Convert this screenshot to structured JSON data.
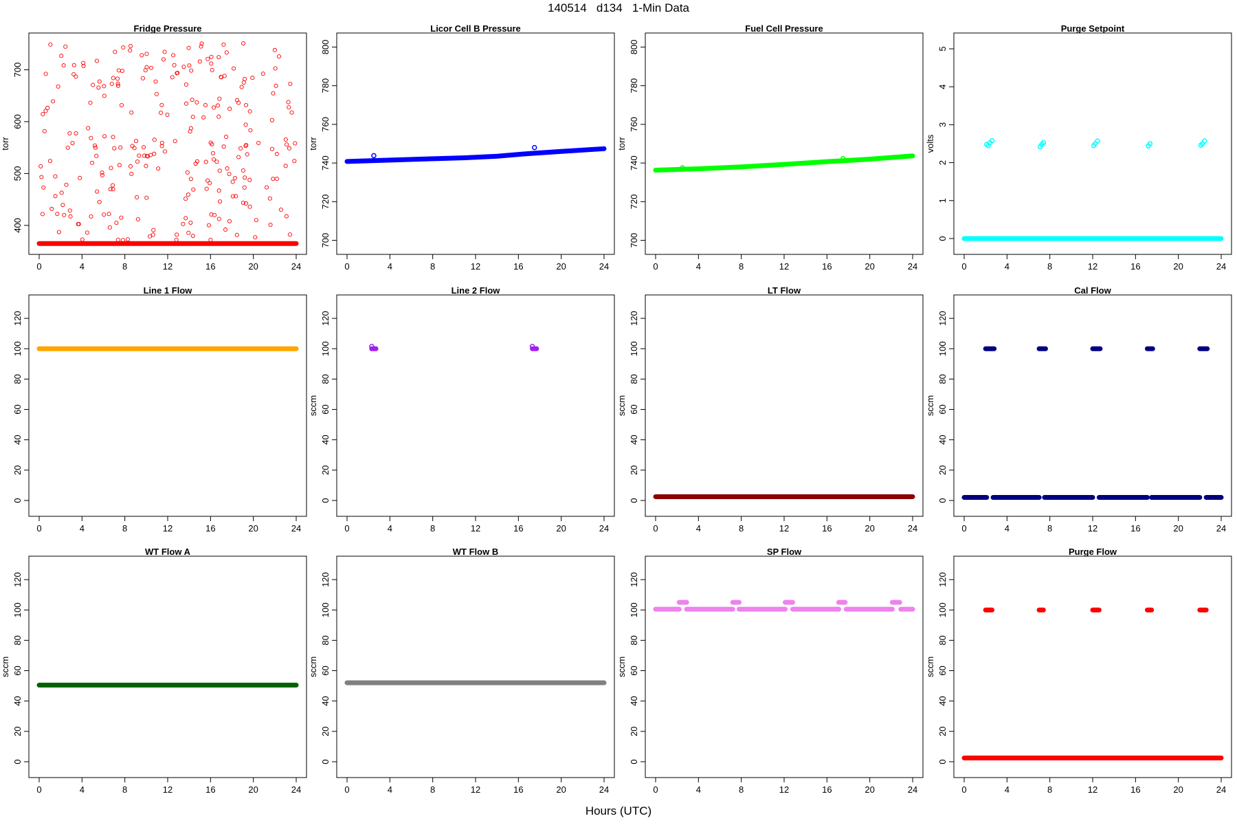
{
  "title": "140514   d134   1-Min Data",
  "xlabel": "Hours (UTC)",
  "colors": {
    "red": "#ff0000",
    "blue": "#0000ff",
    "green": "#00ff00",
    "cyan": "#00ffff",
    "orange": "#ffa500",
    "purple": "#a020f0",
    "darkred": "#8b0000",
    "navy": "#000080",
    "darkgreen": "#006400",
    "gray": "#808080",
    "violet": "#ee82ee"
  },
  "chart_data": [
    {
      "type": "scatter",
      "title": "Fridge Pressure",
      "ylabel": "torr",
      "xlim": [
        0,
        24
      ],
      "ylim": [
        360,
        755
      ],
      "xticks": [
        0,
        4,
        8,
        12,
        16,
        20,
        24
      ],
      "yticks": [
        400,
        500,
        600,
        700
      ],
      "color": "#ff0000",
      "series": [
        {
          "kind": "band",
          "x_from": 0,
          "x_to": 24,
          "y": 365
        },
        {
          "kind": "scatter_random",
          "x_from": 0,
          "x_to": 24,
          "y_from": 370,
          "y_to": 752,
          "count": 260
        }
      ]
    },
    {
      "type": "scatter",
      "title": "Licor Cell B Pressure",
      "ylabel": "torr",
      "xlim": [
        0,
        24
      ],
      "ylim": [
        697,
        803
      ],
      "xticks": [
        0,
        4,
        8,
        12,
        16,
        20,
        24
      ],
      "yticks": [
        700,
        720,
        740,
        760,
        780,
        800
      ],
      "color": "#0000ff",
      "series": [
        {
          "kind": "polyline",
          "x": [
            0,
            4,
            8,
            11,
            14,
            17,
            20,
            24
          ],
          "y": [
            740.8,
            741.5,
            742.2,
            742.7,
            743.5,
            744.9,
            746.0,
            747.4
          ]
        },
        {
          "kind": "points",
          "x": [
            2.5,
            17.5
          ],
          "y": [
            743.8,
            748.0
          ]
        }
      ]
    },
    {
      "type": "scatter",
      "title": "Fuel Cell Pressure",
      "ylabel": "torr",
      "xlim": [
        0,
        24
      ],
      "ylim": [
        697,
        803
      ],
      "xticks": [
        0,
        4,
        8,
        12,
        16,
        20,
        24
      ],
      "yticks": [
        700,
        720,
        740,
        760,
        780,
        800
      ],
      "color": "#00ff00",
      "series": [
        {
          "kind": "polyline",
          "x": [
            0,
            4,
            8,
            12,
            16,
            20,
            24
          ],
          "y": [
            736.3,
            737.0,
            738.0,
            739.3,
            740.7,
            742.0,
            743.7
          ]
        },
        {
          "kind": "points",
          "x": [
            2.5,
            17.5
          ],
          "y": [
            737.5,
            742.3
          ]
        }
      ]
    },
    {
      "type": "scatter",
      "title": "Purge Setpoint",
      "ylabel": "volts",
      "xlim": [
        0,
        24
      ],
      "ylim": [
        -0.2,
        5.2
      ],
      "xticks": [
        0,
        4,
        8,
        12,
        16,
        20,
        24
      ],
      "yticks": [
        0,
        1,
        2,
        3,
        4,
        5
      ],
      "color": "#00ffff",
      "series": [
        {
          "kind": "band",
          "x_from": 0,
          "x_to": 24,
          "y": 0
        },
        {
          "kind": "points",
          "x": [
            2.1,
            2.25,
            2.4,
            2.6,
            7.1,
            7.25,
            7.4,
            12.1,
            12.25,
            12.45,
            17.2,
            17.35,
            22.1,
            22.25,
            22.45
          ],
          "y": [
            2.48,
            2.45,
            2.52,
            2.58,
            2.42,
            2.48,
            2.53,
            2.45,
            2.5,
            2.57,
            2.44,
            2.5,
            2.46,
            2.5,
            2.57
          ]
        }
      ]
    },
    {
      "type": "scatter",
      "title": "Line 1 Flow",
      "ylabel": "",
      "xlim": [
        0,
        24
      ],
      "ylim": [
        -5,
        130
      ],
      "xticks": [
        0,
        4,
        8,
        12,
        16,
        20,
        24
      ],
      "yticks": [
        0,
        20,
        40,
        60,
        80,
        100,
        120
      ],
      "color": "#ffa500",
      "series": [
        {
          "kind": "band",
          "x_from": 0,
          "x_to": 24,
          "y": 100
        }
      ]
    },
    {
      "type": "scatter",
      "title": "Line 2 Flow",
      "ylabel": "sccm",
      "xlim": [
        0,
        24
      ],
      "ylim": [
        -5,
        130
      ],
      "xticks": [
        0,
        4,
        8,
        12,
        16,
        20,
        24
      ],
      "yticks": [
        0,
        20,
        40,
        60,
        80,
        100,
        120
      ],
      "color": "#a020f0",
      "series": [
        {
          "kind": "band",
          "x_from": 2.3,
          "x_to": 2.7,
          "y": 100
        },
        {
          "kind": "band",
          "x_from": 17.3,
          "x_to": 17.7,
          "y": 100
        },
        {
          "kind": "points",
          "x": [
            2.3,
            17.3
          ],
          "y": [
            101.5,
            101.5
          ]
        }
      ]
    },
    {
      "type": "scatter",
      "title": "LT Flow",
      "ylabel": "sccm",
      "xlim": [
        0,
        24
      ],
      "ylim": [
        -5,
        130
      ],
      "xticks": [
        0,
        4,
        8,
        12,
        16,
        20,
        24
      ],
      "yticks": [
        0,
        20,
        40,
        60,
        80,
        100,
        120
      ],
      "color": "#8b0000",
      "series": [
        {
          "kind": "band",
          "x_from": 0,
          "x_to": 24,
          "y": 2.5
        }
      ]
    },
    {
      "type": "scatter",
      "title": "Cal Flow",
      "ylabel": "sccm",
      "xlim": [
        0,
        24
      ],
      "ylim": [
        -5,
        130
      ],
      "xticks": [
        0,
        4,
        8,
        12,
        16,
        20,
        24
      ],
      "yticks": [
        0,
        20,
        40,
        60,
        80,
        100,
        120
      ],
      "color": "#000080",
      "series": [
        {
          "kind": "band",
          "x_from": 0,
          "x_to": 2.1,
          "y": 2
        },
        {
          "kind": "band",
          "x_from": 2.7,
          "x_to": 7.0,
          "y": 2
        },
        {
          "kind": "band",
          "x_from": 7.5,
          "x_to": 12.0,
          "y": 2
        },
        {
          "kind": "band",
          "x_from": 12.6,
          "x_to": 17.1,
          "y": 2
        },
        {
          "kind": "band",
          "x_from": 17.5,
          "x_to": 22.0,
          "y": 2
        },
        {
          "kind": "band",
          "x_from": 22.6,
          "x_to": 24,
          "y": 2
        },
        {
          "kind": "band",
          "x_from": 2.0,
          "x_to": 2.8,
          "y": 100
        },
        {
          "kind": "band",
          "x_from": 7.0,
          "x_to": 7.6,
          "y": 100
        },
        {
          "kind": "band",
          "x_from": 12.0,
          "x_to": 12.7,
          "y": 100
        },
        {
          "kind": "band",
          "x_from": 17.1,
          "x_to": 17.6,
          "y": 100
        },
        {
          "kind": "band",
          "x_from": 22.0,
          "x_to": 22.7,
          "y": 100
        }
      ]
    },
    {
      "type": "scatter",
      "title": "WT Flow A",
      "ylabel": "sccm",
      "xlim": [
        0,
        24
      ],
      "ylim": [
        -5,
        130
      ],
      "xticks": [
        0,
        4,
        8,
        12,
        16,
        20,
        24
      ],
      "yticks": [
        0,
        20,
        40,
        60,
        80,
        100,
        120
      ],
      "color": "#006400",
      "series": [
        {
          "kind": "band",
          "x_from": 0,
          "x_to": 24,
          "y": 50.5
        }
      ]
    },
    {
      "type": "scatter",
      "title": "WT Flow B",
      "ylabel": "sccm",
      "xlim": [
        0,
        24
      ],
      "ylim": [
        -5,
        130
      ],
      "xticks": [
        0,
        4,
        8,
        12,
        16,
        20,
        24
      ],
      "yticks": [
        0,
        20,
        40,
        60,
        80,
        100,
        120
      ],
      "color": "#808080",
      "series": [
        {
          "kind": "band",
          "x_from": 0,
          "x_to": 24,
          "y": 52
        }
      ]
    },
    {
      "type": "scatter",
      "title": "SP Flow",
      "ylabel": "sccm",
      "xlim": [
        0,
        24
      ],
      "ylim": [
        -5,
        130
      ],
      "xticks": [
        0,
        4,
        8,
        12,
        16,
        20,
        24
      ],
      "yticks": [
        0,
        20,
        40,
        60,
        80,
        100,
        120
      ],
      "color": "#ee82ee",
      "series": [
        {
          "kind": "band",
          "x_from": 0,
          "x_to": 2.2,
          "y": 100.5
        },
        {
          "kind": "band",
          "x_from": 2.9,
          "x_to": 7.2,
          "y": 100.5
        },
        {
          "kind": "band",
          "x_from": 7.8,
          "x_to": 12.1,
          "y": 100.5
        },
        {
          "kind": "band",
          "x_from": 12.8,
          "x_to": 17.1,
          "y": 100.5
        },
        {
          "kind": "band",
          "x_from": 17.8,
          "x_to": 22.1,
          "y": 100.5
        },
        {
          "kind": "band",
          "x_from": 22.9,
          "x_to": 24,
          "y": 100.5
        },
        {
          "kind": "band",
          "x_from": 2.2,
          "x_to": 2.9,
          "y": 105
        },
        {
          "kind": "band",
          "x_from": 7.2,
          "x_to": 7.8,
          "y": 105
        },
        {
          "kind": "band",
          "x_from": 12.1,
          "x_to": 12.8,
          "y": 105
        },
        {
          "kind": "band",
          "x_from": 17.1,
          "x_to": 17.7,
          "y": 105
        },
        {
          "kind": "band",
          "x_from": 22.1,
          "x_to": 22.8,
          "y": 105
        }
      ]
    },
    {
      "type": "scatter",
      "title": "Purge Flow",
      "ylabel": "sccm",
      "xlim": [
        0,
        24
      ],
      "ylim": [
        -5,
        130
      ],
      "xticks": [
        0,
        4,
        8,
        12,
        16,
        20,
        24
      ],
      "yticks": [
        0,
        20,
        40,
        60,
        80,
        100,
        120
      ],
      "color": "#ff0000",
      "series": [
        {
          "kind": "band",
          "x_from": 0,
          "x_to": 24,
          "y": 2.5
        },
        {
          "kind": "band",
          "x_from": 2.0,
          "x_to": 2.6,
          "y": 100
        },
        {
          "kind": "band",
          "x_from": 7.0,
          "x_to": 7.4,
          "y": 100
        },
        {
          "kind": "band",
          "x_from": 12.0,
          "x_to": 12.6,
          "y": 100
        },
        {
          "kind": "band",
          "x_from": 17.1,
          "x_to": 17.5,
          "y": 100
        },
        {
          "kind": "band",
          "x_from": 22.0,
          "x_to": 22.6,
          "y": 100
        }
      ]
    }
  ]
}
